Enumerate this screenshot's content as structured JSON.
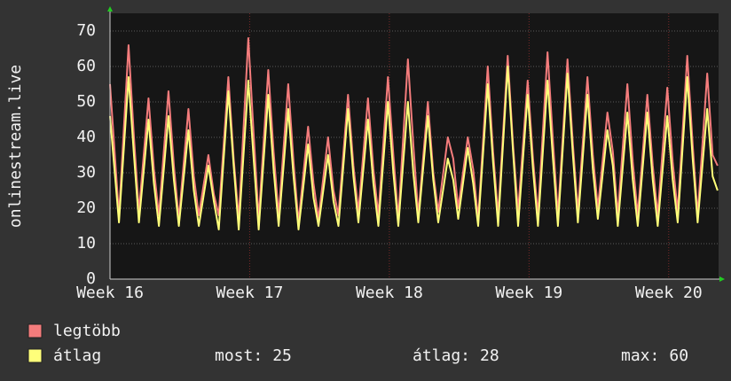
{
  "chart_data": {
    "type": "line",
    "y_label": "onlinestream.live",
    "x": [
      0,
      0.45,
      0.93,
      1.2,
      1.45,
      1.93,
      2.2,
      2.45,
      2.93,
      3.2,
      3.45,
      3.93,
      4.2,
      4.45,
      4.93,
      5.2,
      5.45,
      5.93,
      6.2,
      6.45,
      6.93,
      7.2,
      7.45,
      7.93,
      8.2,
      8.45,
      8.93,
      9.2,
      9.45,
      9.93,
      10.2,
      10.45,
      10.93,
      11.2,
      11.45,
      11.93,
      12.2,
      12.45,
      12.93,
      13.2,
      13.45,
      13.93,
      14.2,
      14.45,
      14.93,
      15.2,
      15.45,
      15.93,
      16.2,
      16.45,
      16.93,
      17.2,
      17.45,
      17.93,
      18.2,
      18.45,
      18.93,
      19.2,
      19.45,
      19.93,
      20.2,
      20.45,
      20.93,
      21.2,
      21.45,
      21.93,
      22.2,
      22.45,
      22.93,
      23.2,
      23.45,
      23.93,
      24.2,
      24.45,
      24.93,
      25.2,
      25.45,
      25.93,
      26.2,
      26.45,
      26.93,
      27.2,
      27.45,
      27.93,
      28.2,
      28.45,
      28.93,
      29.2,
      29.45,
      29.93,
      30.2,
      30.45
    ],
    "xlim": [
      0,
      30.5
    ],
    "xticks": [
      {
        "value": 0,
        "label": "Week 16"
      },
      {
        "value": 7,
        "label": "Week 17"
      },
      {
        "value": 14,
        "label": "Week 18"
      },
      {
        "value": 21,
        "label": "Week 19"
      },
      {
        "value": 28,
        "label": "Week 20"
      }
    ],
    "ylim": [
      0,
      75
    ],
    "yticks": [
      0,
      10,
      20,
      30,
      40,
      50,
      60,
      70
    ],
    "grid": true,
    "series": [
      {
        "name": "legtöbb",
        "color": "#f47c7c",
        "values": [
          55,
          18,
          66,
          40,
          19,
          51,
          31,
          18,
          53,
          32,
          17,
          48,
          29,
          18,
          35,
          24,
          18,
          57,
          34,
          17,
          68,
          41,
          17,
          59,
          36,
          18,
          55,
          33,
          16,
          43,
          27,
          17,
          40,
          25,
          18,
          52,
          32,
          19,
          51,
          31,
          18,
          57,
          35,
          17,
          62,
          38,
          18,
          50,
          30,
          19,
          40,
          34,
          20,
          40,
          31,
          17,
          60,
          36,
          18,
          63,
          38,
          19,
          56,
          34,
          18,
          64,
          39,
          18,
          62,
          38,
          19,
          57,
          35,
          20,
          47,
          36,
          18,
          55,
          33,
          18,
          52,
          32,
          18,
          54,
          33,
          19,
          63,
          38,
          18,
          58,
          35,
          32
        ]
      },
      {
        "name": "átlag",
        "color": "#ffff7a",
        "values": [
          46,
          16,
          57,
          35,
          16,
          45,
          27,
          15,
          46,
          28,
          15,
          42,
          25,
          15,
          32,
          22,
          14,
          53,
          32,
          14,
          56,
          34,
          14,
          52,
          31,
          15,
          48,
          29,
          14,
          38,
          23,
          15,
          35,
          22,
          15,
          48,
          29,
          16,
          45,
          27,
          15,
          50,
          30,
          15,
          50,
          30,
          16,
          46,
          28,
          16,
          34,
          28,
          17,
          37,
          27,
          15,
          55,
          33,
          15,
          60,
          36,
          15,
          52,
          31,
          15,
          56,
          34,
          15,
          58,
          35,
          16,
          52,
          31,
          17,
          42,
          32,
          15,
          47,
          28,
          15,
          47,
          28,
          15,
          46,
          28,
          16,
          57,
          34,
          16,
          48,
          29,
          25
        ]
      }
    ],
    "stats": [
      {
        "label": "most:",
        "value": 25
      },
      {
        "label": "átlag:",
        "value": 28
      },
      {
        "label": "max:",
        "value": 60
      }
    ]
  }
}
